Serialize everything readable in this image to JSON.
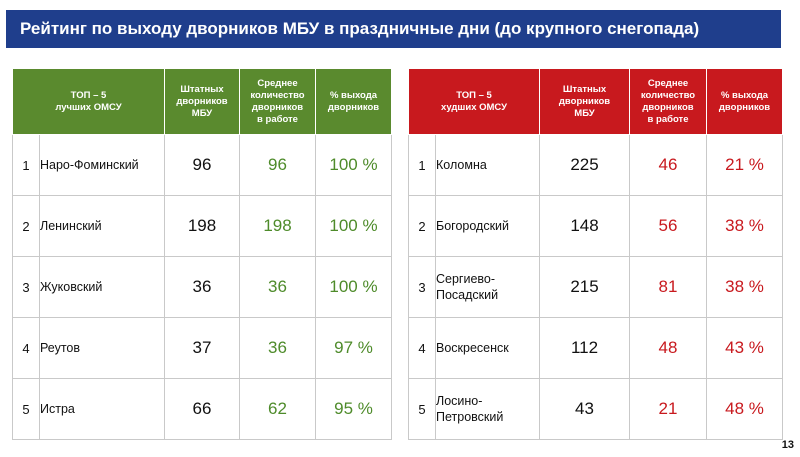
{
  "title": "Рейтинг по выходу дворников МБУ в праздничные дни (до крупного снегопада)",
  "best": {
    "headers": {
      "top": "ТОП – 5\nлучших ОМСУ",
      "staff": "Штатных\nдворников\nМБУ",
      "avg": "Среднее\nколичество\nдворников\nв работе",
      "pct": "% выхода\nдворников"
    },
    "rows": [
      {
        "num": "1",
        "name": "Наро-Фоминский",
        "staff": "96",
        "avg": "96",
        "pct": "100 %"
      },
      {
        "num": "2",
        "name": "Ленинский",
        "staff": "198",
        "avg": "198",
        "pct": "100 %"
      },
      {
        "num": "3",
        "name": "Жуковский",
        "staff": "36",
        "avg": "36",
        "pct": "100 %"
      },
      {
        "num": "4",
        "name": "Реутов",
        "staff": "37",
        "avg": "36",
        "pct": "97 %"
      },
      {
        "num": "5",
        "name": "Истра",
        "staff": "66",
        "avg": "62",
        "pct": "95 %"
      }
    ]
  },
  "worst": {
    "headers": {
      "top": "ТОП – 5\nхудших ОМСУ",
      "staff": "Штатных\nдворников\nМБУ",
      "avg": "Среднее\nколичество\nдворников\nв работе",
      "pct": "% выхода\nдворников"
    },
    "rows": [
      {
        "num": "1",
        "name": "Коломна",
        "staff": "225",
        "avg": "46",
        "pct": "21 %"
      },
      {
        "num": "2",
        "name": "Богородский",
        "staff": "148",
        "avg": "56",
        "pct": "38 %"
      },
      {
        "num": "3",
        "name": "Сергиево-\nПосадский",
        "staff": "215",
        "avg": "81",
        "pct": "38 %"
      },
      {
        "num": "4",
        "name": "Воскресенск",
        "staff": "112",
        "avg": "48",
        "pct": "43 %"
      },
      {
        "num": "5",
        "name": "Лосино-\nПетровский",
        "staff": "43",
        "avg": "21",
        "pct": "48 %"
      }
    ]
  },
  "colors": {
    "title_bg": "#1f3e8c",
    "best_header": "#5a8a2e",
    "worst_header": "#c8191e",
    "best_text": "#4e8b2a",
    "worst_text": "#c8191e"
  },
  "page_number": "13"
}
